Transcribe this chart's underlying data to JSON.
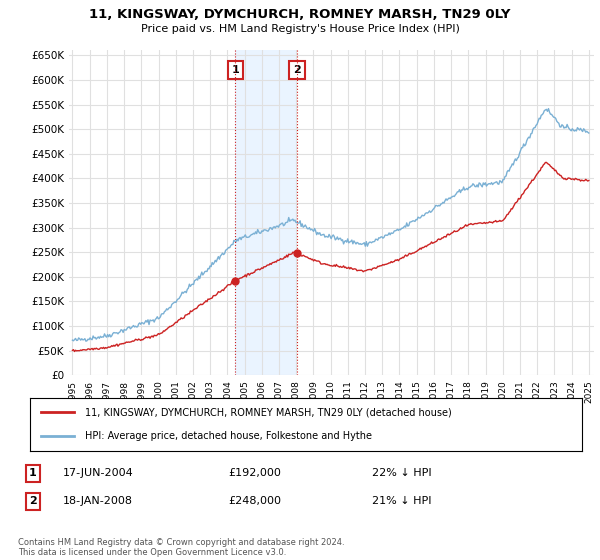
{
  "title": "11, KINGSWAY, DYMCHURCH, ROMNEY MARSH, TN29 0LY",
  "subtitle": "Price paid vs. HM Land Registry's House Price Index (HPI)",
  "ylim": [
    0,
    660000
  ],
  "yticks": [
    0,
    50000,
    100000,
    150000,
    200000,
    250000,
    300000,
    350000,
    400000,
    450000,
    500000,
    550000,
    600000,
    650000
  ],
  "hpi_color": "#7ab0d4",
  "price_color": "#cc2222",
  "sale1_year": 2004.46,
  "sale1_price": 192000,
  "sale1_date": "17-JUN-2004",
  "sale1_pct": "22%",
  "sale2_year": 2008.05,
  "sale2_price": 248000,
  "sale2_date": "18-JAN-2008",
  "sale2_pct": "21%",
  "legend_property": "11, KINGSWAY, DYMCHURCH, ROMNEY MARSH, TN29 0LY (detached house)",
  "legend_hpi": "HPI: Average price, detached house, Folkestone and Hythe",
  "footer": "Contains HM Land Registry data © Crown copyright and database right 2024.\nThis data is licensed under the Open Government Licence v3.0.",
  "bg_color": "#ffffff",
  "plot_bg_color": "#ffffff",
  "grid_color": "#e0e0e0",
  "shade_color": "#ddeeff",
  "box_color": "#cc2222"
}
